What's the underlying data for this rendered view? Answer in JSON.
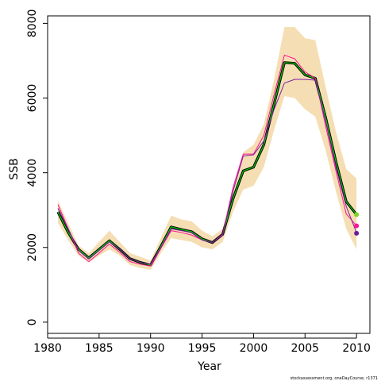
{
  "chart_data": {
    "type": "line",
    "xlabel": "Year",
    "ylabel": "SSB",
    "xlim": [
      1980,
      2011.3
    ],
    "ylim": [
      -300,
      8200
    ],
    "xticks": [
      "1980",
      "1985",
      "1990",
      "1995",
      "2000",
      "2005",
      "2010"
    ],
    "yticks": [
      "0",
      "2000",
      "4000",
      "6000",
      "8000"
    ],
    "footnote": "stockassessment.org, oneDayCourse, r1371",
    "grid": false,
    "legend": "none",
    "x": [
      1981,
      1982,
      1983,
      1984,
      1985,
      1986,
      1987,
      1988,
      1989,
      1990,
      1991,
      1992,
      1993,
      1994,
      1995,
      1996,
      1997,
      1998,
      1999,
      2000,
      2001,
      2002,
      2003,
      2004,
      2005,
      2006,
      2007,
      2008,
      2009,
      2010
    ],
    "band": {
      "color": "#f5deb3",
      "lower": [
        2650,
        2200,
        1780,
        1600,
        1780,
        1950,
        1780,
        1530,
        1450,
        1400,
        1850,
        2250,
        2200,
        2150,
        2000,
        1950,
        2150,
        2950,
        3550,
        3650,
        4150,
        5150,
        6050,
        6000,
        5700,
        5500,
        4600,
        3500,
        2500,
        1950
      ],
      "upper": [
        3250,
        2650,
        2050,
        1850,
        2150,
        2450,
        2150,
        1850,
        1750,
        1650,
        2250,
        2850,
        2750,
        2700,
        2450,
        2300,
        2500,
        3600,
        4550,
        4750,
        5300,
        6500,
        7900,
        7900,
        7600,
        7550,
        6300,
        5100,
        4100,
        3850
      ]
    },
    "series": [
      {
        "color": "#000000",
        "values": [
          2950,
          2400,
          1950,
          1720,
          1950,
          2180,
          1950,
          1700,
          1600,
          1530,
          2030,
          2550,
          2480,
          2420,
          2230,
          2130,
          2350,
          3300,
          4050,
          4150,
          4750,
          5850,
          6950,
          6930,
          6620,
          6530,
          5480,
          4300,
          3230,
          2880
        ]
      },
      {
        "color": "#00cc00",
        "values": [
          2950,
          2400,
          1950,
          1720,
          1950,
          2180,
          1950,
          1700,
          1600,
          1530,
          2030,
          2550,
          2480,
          2420,
          2230,
          2130,
          2350,
          3300,
          4050,
          4150,
          4750,
          5850,
          6950,
          6930,
          6620,
          6530,
          5480,
          4300,
          3230,
          2880
        ]
      },
      {
        "color": "#ff1493",
        "values": [
          3150,
          2500,
          1850,
          1620,
          1850,
          2090,
          1870,
          1620,
          1550,
          1500,
          1980,
          2450,
          2400,
          2330,
          2200,
          2130,
          2350,
          3600,
          4500,
          4500,
          5000,
          6100,
          7150,
          7050,
          6700,
          6530,
          5250,
          4050,
          2900,
          2580
        ]
      },
      {
        "color": "#7a1fa2",
        "values": [
          3050,
          2500,
          1920,
          1700,
          1920,
          2150,
          1950,
          1700,
          1600,
          1550,
          2000,
          2500,
          2450,
          2400,
          2200,
          2130,
          2330,
          3500,
          4450,
          4480,
          4850,
          5700,
          6400,
          6500,
          6500,
          6480,
          5380,
          4150,
          3100,
          2400
        ]
      }
    ],
    "end_points": [
      {
        "x": 2010,
        "y": 2880,
        "color": "#7fd320"
      },
      {
        "x": 2010,
        "y": 2580,
        "color": "#ff1493"
      },
      {
        "x": 2010,
        "y": 2380,
        "color": "#6a1b9a"
      }
    ]
  }
}
